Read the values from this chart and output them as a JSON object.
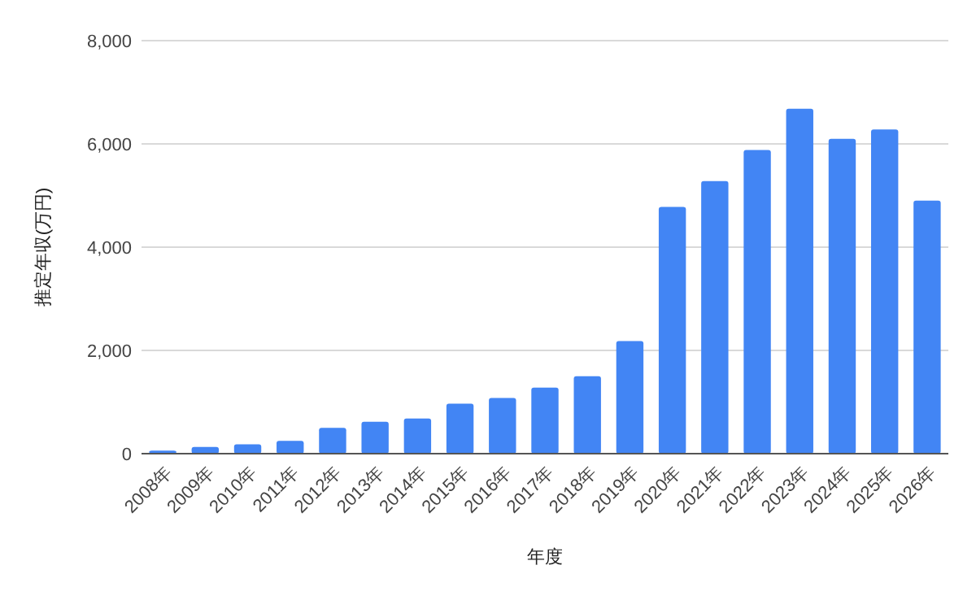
{
  "chart_data": {
    "type": "bar",
    "xlabel": "年度",
    "ylabel": "推定年収(万円)",
    "categories": [
      "2008年",
      "2009年",
      "2010年",
      "2011年",
      "2012年",
      "2013年",
      "2014年",
      "2015年",
      "2016年",
      "2017年",
      "2018年",
      "2019年",
      "2020年",
      "2021年",
      "2022年",
      "2023年",
      "2024年",
      "2025年",
      "2026年"
    ],
    "values": [
      60,
      130,
      180,
      250,
      500,
      620,
      680,
      970,
      1080,
      1280,
      1500,
      2180,
      4780,
      5280,
      5880,
      6680,
      6100,
      6280,
      4900
    ],
    "color": "#4285f4",
    "ylim": [
      0,
      8000
    ],
    "yticks": [
      {
        "value": 0,
        "label": "0"
      },
      {
        "value": 2000,
        "label": "2,000"
      },
      {
        "value": 4000,
        "label": "4,000"
      },
      {
        "value": 6000,
        "label": "6,000"
      },
      {
        "value": 8000,
        "label": "8,000"
      }
    ],
    "grid": "y"
  }
}
